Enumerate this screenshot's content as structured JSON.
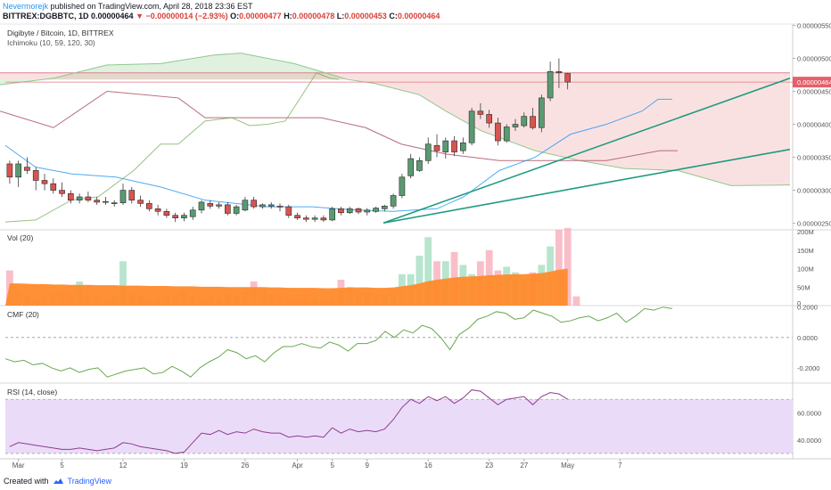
{
  "header": {
    "user": "Nevermorejk",
    "published": "published on TradingView.com, April 28, 2018 23:36 EST",
    "symbol": "BITTREX:DGBBTC, 1D",
    "price": "0.00000464",
    "change": "−0.00000014 (−2.93%)",
    "o_label": "O:",
    "o": "0.00000477",
    "h_label": "H:",
    "h": "0.00000478",
    "l_label": "L:",
    "l": "0.00000453",
    "c_label": "C:",
    "c": "0.00000464"
  },
  "footer": {
    "created_with": "Created with",
    "brand": "TradingView"
  },
  "colors": {
    "up": "#53b987",
    "down": "#eb4d5c",
    "cloud_green": "#a5d6a7",
    "cloud_red": "#ef9a9a",
    "volume_ma": "#ff8a2b",
    "cmf": "#6aa84f",
    "rsi": "#8e3c8e",
    "rsi_band": "#e8d8f8",
    "trendline": "#1f9a80",
    "conversion": "#2196f3",
    "lagging": "#6aa84f"
  },
  "chart_data": [
    {
      "type": "candlestick",
      "title": "Digibyte / Bitcoin, 1D, BITTREX",
      "indicator": "Ichimoku (10, 59, 120, 30)",
      "x_ticks": [
        "Mar",
        "5",
        "12",
        "19",
        "26",
        "Apr",
        "5",
        "9",
        "16",
        "23",
        "27",
        "May",
        "7"
      ],
      "y_ticks": [
        "0.00000550",
        "0.00000500",
        "0.00000450",
        "0.00000400",
        "0.00000350",
        "0.00000300",
        "0.00000250"
      ],
      "ylim": [
        2.4e-06,
        5.52e-06
      ],
      "last_price_label": "0.00000464",
      "ohlc": [
        [
          3.4e-06,
          3.45e-06,
          3.1e-06,
          3.2e-06
        ],
        [
          3.2e-06,
          3.45e-06,
          3.05e-06,
          3.4e-06
        ],
        [
          3.35e-06,
          3.5e-06,
          3.25e-06,
          3.3e-06
        ],
        [
          3.3e-06,
          3.35e-06,
          3e-06,
          3.15e-06
        ],
        [
          3.15e-06,
          3.25e-06,
          3e-06,
          3.1e-06
        ],
        [
          3.1e-06,
          3.18e-06,
          2.95e-06,
          3e-06
        ],
        [
          3e-06,
          3.12e-06,
          2.9e-06,
          2.95e-06
        ],
        [
          2.95e-06,
          3e-06,
          2.8e-06,
          2.85e-06
        ],
        [
          2.85e-06,
          2.95e-06,
          2.8e-06,
          2.9e-06
        ],
        [
          2.9e-06,
          2.98e-06,
          2.82e-06,
          2.85e-06
        ],
        [
          2.85e-06,
          2.9e-06,
          2.78e-06,
          2.82e-06
        ],
        [
          2.82e-06,
          2.9e-06,
          2.78e-06,
          2.83e-06
        ],
        [
          2.8e-06,
          2.85e-06,
          2.75e-06,
          2.81e-06
        ],
        [
          2.81e-06,
          3.1e-06,
          2.78e-06,
          3e-06
        ],
        [
          3e-06,
          3.05e-06,
          2.8e-06,
          2.85e-06
        ],
        [
          2.85e-06,
          2.92e-06,
          2.75e-06,
          2.8e-06
        ],
        [
          2.8e-06,
          2.85e-06,
          2.68e-06,
          2.72e-06
        ],
        [
          2.72e-06,
          2.78e-06,
          2.62e-06,
          2.68e-06
        ],
        [
          2.68e-06,
          2.72e-06,
          2.58e-06,
          2.62e-06
        ],
        [
          2.62e-06,
          2.66e-06,
          2.52e-06,
          2.58e-06
        ],
        [
          2.58e-06,
          2.66e-06,
          2.53e-06,
          2.62e-06
        ],
        [
          2.6e-06,
          2.75e-06,
          2.55e-06,
          2.7e-06
        ],
        [
          2.7e-06,
          2.85e-06,
          2.65e-06,
          2.82e-06
        ],
        [
          2.8e-06,
          2.85e-06,
          2.72e-06,
          2.76e-06
        ],
        [
          2.76e-06,
          2.82e-06,
          2.72e-06,
          2.78e-06
        ],
        [
          2.78e-06,
          2.82e-06,
          2.62e-06,
          2.65e-06
        ],
        [
          2.65e-06,
          2.78e-06,
          2.62e-06,
          2.75e-06
        ],
        [
          2.7e-06,
          2.9e-06,
          2.68e-06,
          2.85e-06
        ],
        [
          2.85e-06,
          2.9e-06,
          2.72e-06,
          2.75e-06
        ],
        [
          2.75e-06,
          2.8e-06,
          2.72e-06,
          2.78e-06
        ],
        [
          2.78e-06,
          2.82e-06,
          2.72e-06,
          2.76e-06
        ],
        [
          2.76e-06,
          2.8e-06,
          2.68e-06,
          2.75e-06
        ],
        [
          2.75e-06,
          2.78e-06,
          2.58e-06,
          2.62e-06
        ],
        [
          2.62e-06,
          2.66e-06,
          2.55e-06,
          2.58e-06
        ],
        [
          2.58e-06,
          2.62e-06,
          2.52e-06,
          2.56e-06
        ],
        [
          2.56e-06,
          2.62e-06,
          2.52e-06,
          2.58e-06
        ],
        [
          2.58e-06,
          2.62e-06,
          2.52e-06,
          2.55e-06
        ],
        [
          2.55e-06,
          2.75e-06,
          2.53e-06,
          2.72e-06
        ],
        [
          2.72e-06,
          2.75e-06,
          2.62e-06,
          2.66e-06
        ],
        [
          2.66e-06,
          2.75e-06,
          2.64e-06,
          2.72e-06
        ],
        [
          2.72e-06,
          2.74e-06,
          2.64e-06,
          2.67e-06
        ],
        [
          2.67e-06,
          2.73e-06,
          2.62e-06,
          2.7e-06
        ],
        [
          2.68e-06,
          2.75e-06,
          2.66e-06,
          2.73e-06
        ],
        [
          2.72e-06,
          2.78e-06,
          2.68e-06,
          2.76e-06
        ],
        [
          2.76e-06,
          2.95e-06,
          2.72e-06,
          2.92e-06
        ],
        [
          2.92e-06,
          3.25e-06,
          2.88e-06,
          3.2e-06
        ],
        [
          3.22e-06,
          3.55e-06,
          3.18e-06,
          3.48e-06
        ],
        [
          3.3e-06,
          3.5e-06,
          3.28e-06,
          3.45e-06
        ],
        [
          3.45e-06,
          3.8e-06,
          3.4e-06,
          3.7e-06
        ],
        [
          3.68e-06,
          3.85e-06,
          3.5e-06,
          3.6e-06
        ],
        [
          3.58e-06,
          3.8e-06,
          3.48e-06,
          3.75e-06
        ],
        [
          3.75e-06,
          3.82e-06,
          3.52e-06,
          3.58e-06
        ],
        [
          3.6e-06,
          3.8e-06,
          3.55e-06,
          3.72e-06
        ],
        [
          3.72e-06,
          4.25e-06,
          3.68e-06,
          4.2e-06
        ],
        [
          4.2e-06,
          4.32e-06,
          4.08e-06,
          4.15e-06
        ],
        [
          4.15e-06,
          4.22e-06,
          3.95e-06,
          4.02e-06
        ],
        [
          4.02e-06,
          4.1e-06,
          3.68e-06,
          3.75e-06
        ],
        [
          3.75e-06,
          4e-06,
          3.72e-06,
          3.96e-06
        ],
        [
          3.96e-06,
          4.08e-06,
          3.9e-06,
          4e-06
        ],
        [
          3.98e-06,
          4.18e-06,
          3.95e-06,
          4.12e-06
        ],
        [
          4.12e-06,
          4.25e-06,
          3.92e-06,
          3.95e-06
        ],
        [
          3.95e-06,
          4.45e-06,
          3.88e-06,
          4.4e-06
        ],
        [
          4.4e-06,
          4.95e-06,
          4.35e-06,
          4.8e-06
        ],
        [
          4.8e-06,
          5e-06,
          4.55e-06,
          4.78e-06
        ],
        [
          4.77e-06,
          4.78e-06,
          4.53e-06,
          4.64e-06
        ]
      ]
    },
    {
      "type": "bar",
      "title": "Vol (20)",
      "y_ticks": [
        "200M",
        "150M",
        "100M",
        "50M",
        "0"
      ],
      "ylim": [
        0,
        200
      ],
      "units": "M",
      "values": [
        95,
        40,
        25,
        20,
        25,
        30,
        35,
        30,
        65,
        30,
        25,
        20,
        25,
        120,
        30,
        25,
        20,
        20,
        25,
        30,
        40,
        25,
        20,
        30,
        20,
        30,
        25,
        40,
        65,
        45,
        30,
        25,
        20,
        20,
        20,
        20,
        15,
        20,
        70,
        50,
        40,
        35,
        25,
        30,
        40,
        85,
        85,
        135,
        185,
        120,
        120,
        145,
        110,
        85,
        120,
        150,
        95,
        105,
        90,
        70,
        90,
        110,
        160,
        205,
        210,
        25
      ],
      "ma_values": [
        60,
        60,
        59,
        58,
        58,
        57,
        57,
        56,
        56,
        56,
        55,
        55,
        55,
        54,
        54,
        54,
        53,
        53,
        53,
        52,
        52,
        52,
        51,
        51,
        51,
        50,
        50,
        50,
        50,
        50,
        49,
        49,
        48,
        48,
        48,
        48,
        47,
        47,
        48,
        49,
        49,
        49,
        48,
        48,
        49,
        52,
        55,
        60,
        66,
        70,
        73,
        76,
        78,
        79,
        80,
        82,
        83,
        84,
        85,
        85,
        86,
        88,
        92,
        97,
        100,
        null
      ]
    },
    {
      "type": "line",
      "title": "CMF (20)",
      "y_ticks": [
        "0.2000",
        "0.0000",
        "-0.2000"
      ],
      "ylim": [
        -0.3,
        0.21
      ],
      "zero_line": 0,
      "values": [
        -0.14,
        -0.16,
        -0.15,
        -0.18,
        -0.17,
        -0.2,
        -0.22,
        -0.2,
        -0.23,
        -0.21,
        -0.2,
        -0.26,
        -0.24,
        -0.22,
        -0.21,
        -0.2,
        -0.24,
        -0.23,
        -0.19,
        -0.22,
        -0.26,
        -0.2,
        -0.16,
        -0.13,
        -0.08,
        -0.1,
        -0.14,
        -0.12,
        -0.16,
        -0.1,
        -0.06,
        -0.06,
        -0.04,
        -0.06,
        -0.07,
        -0.03,
        -0.05,
        -0.09,
        -0.04,
        -0.04,
        -0.02,
        0.04,
        0.0,
        0.05,
        0.03,
        0.08,
        0.06,
        0.0,
        -0.08,
        0.02,
        0.06,
        0.12,
        0.14,
        0.17,
        0.16,
        0.12,
        0.13,
        0.18,
        0.16,
        0.14,
        0.1,
        0.11,
        0.13,
        0.14,
        0.11,
        0.13,
        0.16,
        0.1,
        0.14,
        0.19,
        0.18,
        0.2,
        0.19
      ]
    },
    {
      "type": "line",
      "title": "RSI (14, close)",
      "y_ticks": [
        "60.0000",
        "40.0000"
      ],
      "ylim": [
        26,
        82
      ],
      "band": [
        30,
        70
      ],
      "values": [
        35,
        38,
        37,
        36,
        35,
        34,
        33,
        33,
        34,
        33,
        32,
        33,
        34,
        38,
        37,
        35,
        34,
        33,
        32,
        30,
        31,
        38,
        45,
        44,
        47,
        44,
        46,
        45,
        48,
        46,
        45,
        45,
        42,
        43,
        42,
        43,
        42,
        49,
        45,
        48,
        46,
        47,
        46,
        48,
        55,
        64,
        70,
        67,
        72,
        69,
        72,
        67,
        71,
        77,
        76,
        71,
        66,
        70,
        71,
        72,
        66,
        72,
        75,
        74,
        70
      ]
    }
  ]
}
